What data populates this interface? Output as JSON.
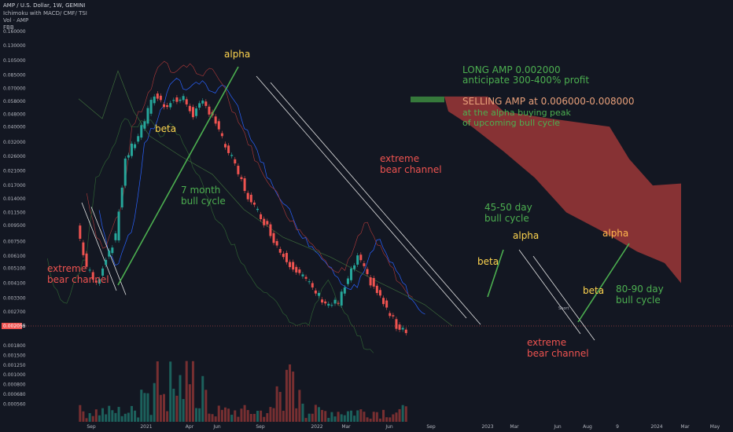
{
  "header": {
    "title": "AMP / U.S. Dollar, 1W, GEMINI",
    "indicators": "Ichimoku with MACD/ CMF/ TSI",
    "volume": "Vol · AMP",
    "fib": "FBB"
  },
  "colors": {
    "background": "#131722",
    "up": "#26a69a",
    "down": "#ef5350",
    "green_text": "#4caf50",
    "red_text": "#ef5350",
    "yellow_text": "#ffd54f",
    "orange_text": "#ffb74d",
    "kumo": "#a83a3a",
    "channel": "#e6e6e6",
    "trend": "#4caf50"
  },
  "chart_data": {
    "type": "candlestick",
    "title": "AMP / U.S. Dollar, 1W, GEMINI",
    "yscale": "log",
    "y_tick_labels": [
      "0.160000",
      "0.130000",
      "0.105000",
      "0.085000",
      "0.070000",
      "0.058000",
      "0.048000",
      "0.040000",
      "0.032000",
      "0.026000",
      "0.021000",
      "0.017000",
      "0.014000",
      "0.011500",
      "0.009500",
      "0.007500",
      "0.006100",
      "0.005100",
      "0.004100",
      "0.003300",
      "0.002700",
      "0.002200",
      "0.001800",
      "0.001500",
      "0.001250",
      "0.001000",
      "0.000800",
      "0.000680",
      "0.000560"
    ],
    "x_tick_labels": [
      "Sep",
      "2021",
      "Apr",
      "Jun",
      "Sep",
      "2022",
      "Mar",
      "Jun",
      "Sep",
      "2023",
      "Mar",
      "Jun",
      "Aug",
      "9",
      "2024",
      "Mar",
      "May"
    ],
    "price_path": [
      [
        "2020-09",
        0.0095
      ],
      [
        "2020-10",
        0.0052
      ],
      [
        "2020-11",
        0.004
      ],
      [
        "2020-12",
        0.006
      ],
      [
        "2021-01",
        0.008
      ],
      [
        "2021-02",
        0.025
      ],
      [
        "2021-03",
        0.032
      ],
      [
        "2021-04",
        0.044
      ],
      [
        "2021-05",
        0.064
      ],
      [
        "2021-06",
        0.055
      ],
      [
        "2021-07",
        0.058
      ],
      [
        "2021-08",
        0.06
      ],
      [
        "2021-09",
        0.048
      ],
      [
        "2021-10",
        0.056
      ],
      [
        "2021-11",
        0.048
      ],
      [
        "2021-12",
        0.033
      ],
      [
        "2022-01",
        0.025
      ],
      [
        "2022-02",
        0.018
      ],
      [
        "2022-03",
        0.013
      ],
      [
        "2022-04",
        0.011
      ],
      [
        "2022-05",
        0.0085
      ],
      [
        "2022-06",
        0.0065
      ],
      [
        "2022-07",
        0.0055
      ],
      [
        "2022-08",
        0.0048
      ],
      [
        "2022-09",
        0.004
      ],
      [
        "2022-10",
        0.0034
      ],
      [
        "2022-11",
        0.003
      ],
      [
        "2022-12",
        0.0031
      ],
      [
        "2023-01",
        0.0043
      ],
      [
        "2023-02",
        0.006
      ],
      [
        "2023-03",
        0.0045
      ],
      [
        "2023-04",
        0.0036
      ],
      [
        "2023-05",
        0.0028
      ],
      [
        "2023-06",
        0.0022
      ],
      [
        "2023-07",
        0.0021
      ]
    ]
  },
  "annotations": {
    "long_line1": "LONG AMP 0.002000",
    "long_line2": "anticipate 300-400% profit",
    "sell_line1": "SELLING AMP at 0.006000-0.008000",
    "sell_line2": "at the alpha buying peak",
    "sell_line3": "of upcoming bull cycle",
    "alpha": "alpha",
    "beta": "beta",
    "bull7_1": "7 month",
    "bull7_2": "bull cycle",
    "bull45_1": "45-50 day",
    "bull45_2": "bull cycle",
    "bull80_1": "80-90 day",
    "bull80_2": "bull cycle",
    "bear_1": "extreme",
    "bear_2": "bear channel",
    "short_label": "Short",
    "price_badge": "0.002055"
  }
}
